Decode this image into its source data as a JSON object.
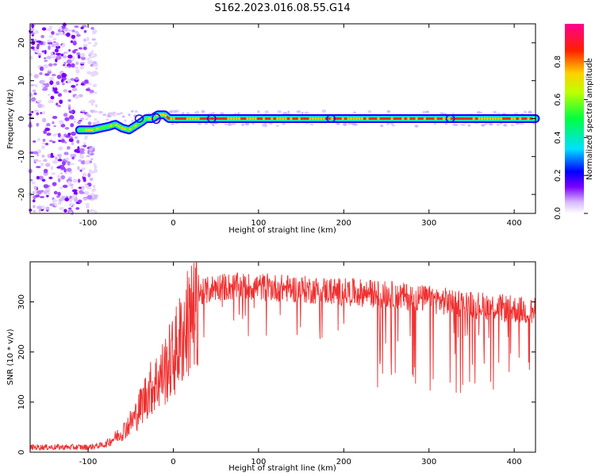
{
  "title": "S162.2023.016.08.55.G14",
  "chart_data": [
    {
      "type": "heatmap",
      "xlabel": "Height of straight line (km)",
      "ylabel": "Frequency (Hz)",
      "xlim": [
        -168,
        425
      ],
      "ylim": [
        -25,
        25
      ],
      "xticks": [
        -100,
        0,
        100,
        200,
        300,
        400
      ],
      "yticks": [
        -20,
        -10,
        0,
        10,
        20
      ],
      "colorbar": {
        "label": "Normalized spectral amplitude",
        "range": [
          0,
          1
        ],
        "ticks": [
          "0.0",
          "0.2",
          "0.4",
          "0.6",
          "0.8"
        ]
      },
      "noise_region": [
        -168,
        -110
      ],
      "ridge_track": [
        {
          "x": -110,
          "y": -3
        },
        {
          "x": -95,
          "y": -3
        },
        {
          "x": -85,
          "y": -2.5
        },
        {
          "x": -75,
          "y": -2
        },
        {
          "x": -68,
          "y": -1.5
        },
        {
          "x": -60,
          "y": -2.5
        },
        {
          "x": -52,
          "y": -3
        },
        {
          "x": -45,
          "y": -2
        },
        {
          "x": -38,
          "y": -1
        },
        {
          "x": -32,
          "y": 0
        },
        {
          "x": -25,
          "y": 0
        },
        {
          "x": -18,
          "y": 1
        },
        {
          "x": -10,
          "y": 1
        },
        {
          "x": -5,
          "y": 0
        },
        {
          "x": 100,
          "y": 0
        },
        {
          "x": 200,
          "y": 0
        },
        {
          "x": 300,
          "y": 0
        },
        {
          "x": 425,
          "y": 0
        }
      ]
    },
    {
      "type": "line",
      "xlabel": "Height of straight line (km)",
      "ylabel": "SNR (10 * v/v)",
      "xlim": [
        -168,
        425
      ],
      "ylim": [
        0,
        380
      ],
      "xticks": [
        -100,
        0,
        100,
        200,
        300,
        400
      ],
      "yticks": [
        0,
        100,
        200,
        300
      ],
      "color": "#f03030",
      "envelope": [
        {
          "x": -168,
          "y": 10
        },
        {
          "x": -100,
          "y": 10
        },
        {
          "x": -80,
          "y": 15
        },
        {
          "x": -60,
          "y": 40
        },
        {
          "x": -45,
          "y": 70
        },
        {
          "x": -30,
          "y": 120
        },
        {
          "x": -15,
          "y": 150
        },
        {
          "x": 0,
          "y": 190
        },
        {
          "x": 10,
          "y": 230
        },
        {
          "x": 20,
          "y": 270
        },
        {
          "x": 30,
          "y": 315
        },
        {
          "x": 50,
          "y": 330
        },
        {
          "x": 100,
          "y": 330
        },
        {
          "x": 150,
          "y": 325
        },
        {
          "x": 200,
          "y": 320
        },
        {
          "x": 250,
          "y": 315
        },
        {
          "x": 300,
          "y": 305
        },
        {
          "x": 350,
          "y": 295
        },
        {
          "x": 400,
          "y": 285
        },
        {
          "x": 425,
          "y": 280
        }
      ],
      "dip_region": [
        235,
        425
      ],
      "dip_min": 110
    }
  ]
}
